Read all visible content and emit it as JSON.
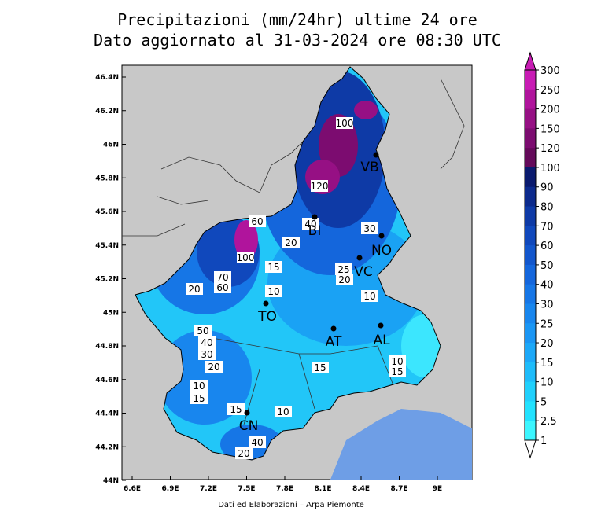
{
  "header": {
    "title": "Precipitazioni (mm/24hr) ultime 24 ore",
    "subtitle": "Dato aggiornato al 31-03-2024 ore 08:30 UTC"
  },
  "axes": {
    "lat_labels": [
      "46.4N",
      "46.2N",
      "46N",
      "45.8N",
      "45.6N",
      "45.4N",
      "45.2N",
      "45N",
      "44.8N",
      "44.6N",
      "44.4N",
      "44.2N",
      "44N"
    ],
    "lon_labels": [
      "6.6E",
      "6.9E",
      "7.2E",
      "7.5E",
      "7.8E",
      "8.1E",
      "8.4E",
      "8.7E",
      "9E"
    ]
  },
  "colorbar": {
    "labels": [
      "300",
      "250",
      "200",
      "150",
      "120",
      "100",
      "90",
      "80",
      "70",
      "60",
      "50",
      "40",
      "30",
      "25",
      "20",
      "15",
      "10",
      "5",
      "2.5",
      "1"
    ],
    "colors": [
      "#c81cb4",
      "#b0149c",
      "#961084",
      "#7c0c70",
      "#640a5a",
      "#0a1a6e",
      "#0c2a8c",
      "#0e3aa6",
      "#1048bc",
      "#1256cc",
      "#1466dc",
      "#1676e6",
      "#1886ee",
      "#1a96f4",
      "#1ca8f8",
      "#1ebcfa",
      "#20d0fc",
      "#22e2fe",
      "#3cf6ff"
    ]
  },
  "cities": [
    "VB",
    "NO",
    "BI",
    "VC",
    "TO",
    "AT",
    "AL",
    "CN"
  ],
  "contour_labels": [
    "100",
    "120",
    "100",
    "70",
    "60",
    "50",
    "40",
    "30",
    "20",
    "10",
    "15",
    "15",
    "10",
    "40",
    "20",
    "15",
    "10",
    "20",
    "30",
    "25",
    "20",
    "10",
    "10",
    "15",
    "15",
    "20",
    "60",
    "40"
  ],
  "footer": "Dati ed Elaborazioni – Arpa Piemonte"
}
